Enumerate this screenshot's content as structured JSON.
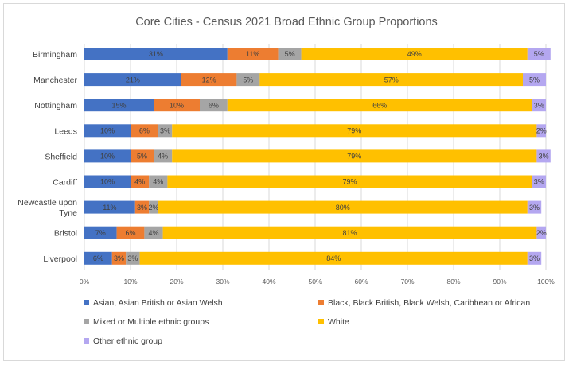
{
  "chart_data": {
    "type": "bar",
    "orientation": "horizontal",
    "stacked": "percent",
    "title": "Core Cities - Census 2021 Broad Ethnic Group Proportions",
    "categories": [
      [
        "Birmingham"
      ],
      [
        "Manchester"
      ],
      [
        "Nottingham"
      ],
      [
        "Leeds"
      ],
      [
        "Sheffield"
      ],
      [
        "Cardiff"
      ],
      [
        "Newcastle upon",
        "Tyne"
      ],
      [
        "Bristol"
      ],
      [
        "Liverpool"
      ]
    ],
    "series": [
      {
        "name": "Asian, Asian British or Asian Welsh",
        "color": "#4472c4",
        "values": [
          31,
          21,
          15,
          10,
          10,
          10,
          11,
          7,
          6
        ]
      },
      {
        "name": "Black, Black British, Black Welsh, Caribbean or African",
        "color": "#ed7d31",
        "values": [
          11,
          12,
          10,
          6,
          5,
          4,
          3,
          6,
          3
        ]
      },
      {
        "name": "Mixed or Multiple ethnic groups",
        "color": "#a5a5a5",
        "values": [
          5,
          5,
          6,
          3,
          4,
          4,
          2,
          4,
          3
        ]
      },
      {
        "name": "White",
        "color": "#ffc000",
        "values": [
          49,
          57,
          66,
          79,
          79,
          79,
          80,
          81,
          84
        ]
      },
      {
        "name": "Other ethnic group",
        "color": "#b4a7f0",
        "values": [
          5,
          5,
          3,
          2,
          3,
          3,
          3,
          2,
          3
        ]
      }
    ],
    "xlim": [
      0,
      100
    ],
    "xticks": [
      "0%",
      "10%",
      "20%",
      "30%",
      "40%",
      "50%",
      "60%",
      "70%",
      "80%",
      "90%",
      "100%"
    ],
    "grid": true,
    "legend_position": "bottom"
  }
}
